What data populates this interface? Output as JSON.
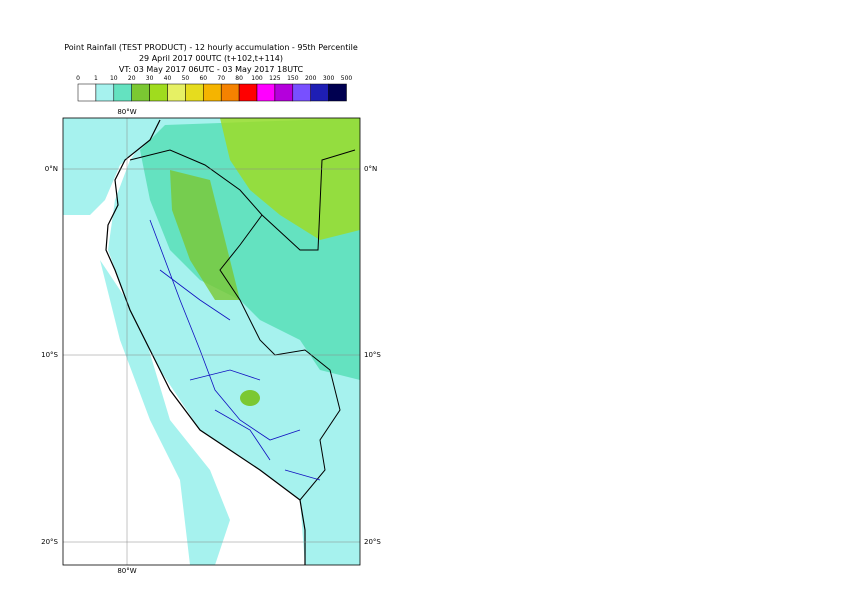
{
  "header": {
    "title_lines": [
      "Point Rainfall (TEST PRODUCT) - 12 hourly accumulation - 95th Percentile",
      "29 April 2017 00UTC (t+102,t+114)",
      "VT: 03 May 2017 06UTC - 03 May 2017 18UTC"
    ]
  },
  "legend": {
    "thresholds": [
      "0",
      "1",
      "10",
      "20",
      "30",
      "40",
      "50",
      "60",
      "70",
      "80",
      "100",
      "125",
      "150",
      "200",
      "300",
      "500"
    ],
    "colors": [
      "#ffffff",
      "#a6f2ee",
      "#64e2c0",
      "#7bc832",
      "#a0dc1e",
      "#e6f064",
      "#e6dc1e",
      "#f5b400",
      "#f58200",
      "#ff0000",
      "#ff00ff",
      "#b400dc",
      "#7850ff",
      "#1e1eb4",
      "#000050"
    ]
  },
  "map": {
    "lon_labels": [
      "80°W"
    ],
    "lat_labels": [
      "0°N",
      "10°S",
      "20°S"
    ]
  }
}
